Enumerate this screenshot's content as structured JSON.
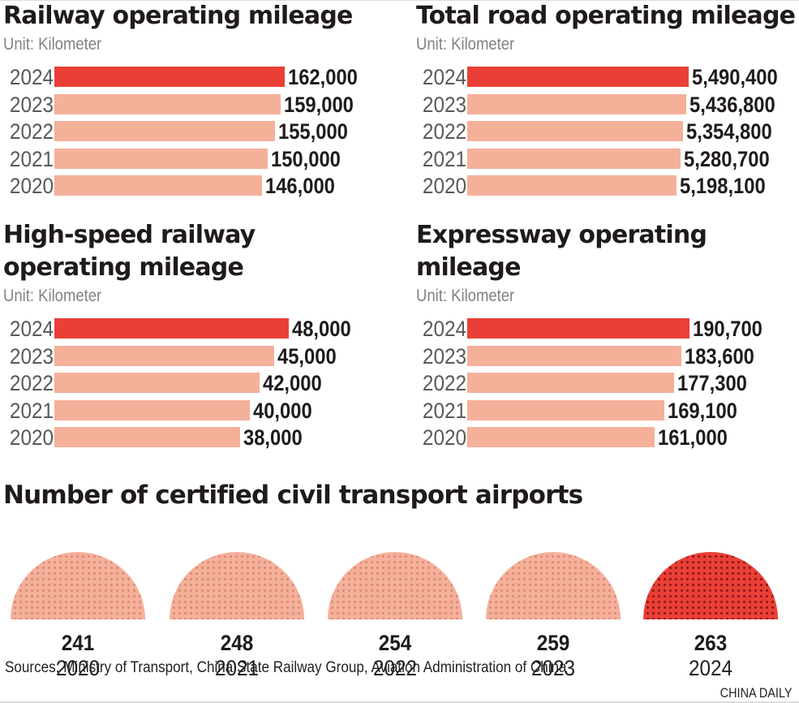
{
  "chart_data": [
    {
      "type": "bar",
      "id": "railway",
      "title": "Railway operating mileage",
      "unit_label": "Unit: Kilometer",
      "categories": [
        "2024",
        "2023",
        "2022",
        "2021",
        "2020"
      ],
      "values": [
        162000,
        159000,
        155000,
        150000,
        146000
      ],
      "value_labels": [
        "162,000",
        "159,000",
        "155,000",
        "150,000",
        "146,000"
      ],
      "highlight": "2024",
      "orientation": "horizontal"
    },
    {
      "type": "bar",
      "id": "road",
      "title": "Total road operating mileage",
      "unit_label": "Unit: Kilometer",
      "categories": [
        "2024",
        "2023",
        "2022",
        "2021",
        "2020"
      ],
      "values": [
        5490400,
        5436800,
        5354800,
        5280700,
        5198100
      ],
      "value_labels": [
        "5,490,400",
        "5,436,800",
        "5,354,800",
        "5,280,700",
        "5,198,100"
      ],
      "highlight": "2024",
      "orientation": "horizontal"
    },
    {
      "type": "bar",
      "id": "highspeed",
      "title_lines": [
        "High-speed railway",
        "operating mileage"
      ],
      "unit_label": "Unit: Kilometer",
      "categories": [
        "2024",
        "2023",
        "2022",
        "2021",
        "2020"
      ],
      "values": [
        48000,
        45000,
        42000,
        40000,
        38000
      ],
      "value_labels": [
        "48,000",
        "45,000",
        "42,000",
        "40,000",
        "38,000"
      ],
      "highlight": "2024",
      "orientation": "horizontal"
    },
    {
      "type": "bar",
      "id": "expressway",
      "title_lines": [
        "Expressway operating",
        "mileage"
      ],
      "unit_label": "Unit: Kilometer",
      "categories": [
        "2024",
        "2023",
        "2022",
        "2021",
        "2020"
      ],
      "values": [
        190700,
        183600,
        177300,
        169100,
        161000
      ],
      "value_labels": [
        "190,700",
        "183,600",
        "177,300",
        "169,100",
        "161,000"
      ],
      "highlight": "2024",
      "orientation": "horizontal"
    },
    {
      "type": "bar",
      "id": "airports",
      "title": "Number of certified civil transport airports",
      "categories": [
        "2020",
        "2021",
        "2022",
        "2023",
        "2024"
      ],
      "values": [
        241,
        248,
        254,
        259,
        263
      ],
      "value_labels": [
        "241",
        "248",
        "254",
        "259",
        "263"
      ],
      "highlight": "2024",
      "marker": "dotted-semicircle"
    }
  ],
  "colors": {
    "highlight": "#ea3f37",
    "base": "#f5b09a",
    "dot_base": "#d98a78",
    "dot_highlight": "#8a1a16",
    "title": "#1f1a1b",
    "unit": "#808285"
  },
  "footer": {
    "sources": "Sources: Ministry of Transport, China State Railway Group, Aviation Administration of China",
    "credit": "CHINA DAILY"
  }
}
